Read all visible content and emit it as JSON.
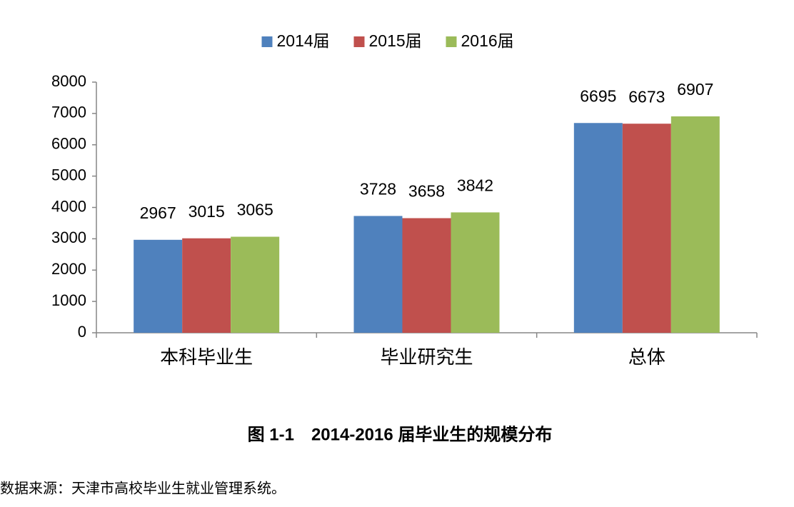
{
  "chart_data": {
    "type": "bar",
    "categories": [
      "本科毕业生",
      "毕业研究生",
      "总体"
    ],
    "series": [
      {
        "name": "2014届",
        "color": "#4f81bd",
        "values": [
          2967,
          3728,
          6695
        ]
      },
      {
        "name": "2015届",
        "color": "#c0504d",
        "values": [
          3015,
          3658,
          6673
        ]
      },
      {
        "name": "2016届",
        "color": "#9bbb59",
        "values": [
          3065,
          3842,
          6907
        ]
      }
    ],
    "ylim": [
      0,
      8000
    ],
    "yticks": [
      0,
      1000,
      2000,
      3000,
      4000,
      5000,
      6000,
      7000,
      8000
    ],
    "grid": false,
    "legend": "top"
  },
  "caption": "图 1-1　2014-2016 届毕业生的规模分布",
  "source": "数据来源：天津市高校毕业生就业管理系统。"
}
